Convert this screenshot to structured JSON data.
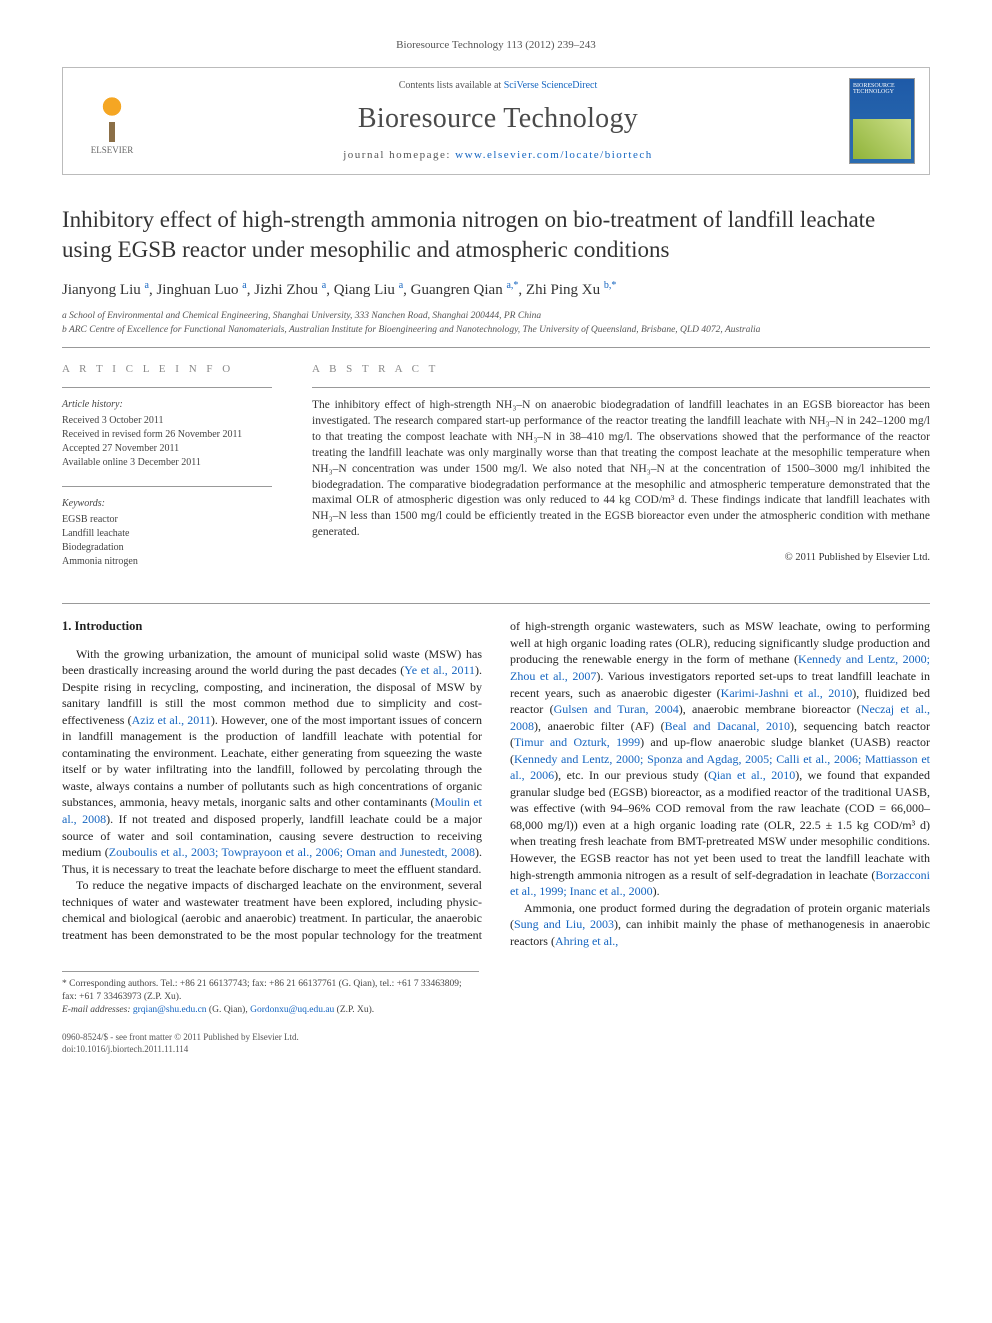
{
  "journal": {
    "citation_line": "Bioresource Technology 113 (2012) 239–243",
    "contents_line_pre": "Contents lists available at ",
    "contents_link": "SciVerse ScienceDirect",
    "name": "Bioresource Technology",
    "homepage_pre": "journal homepage: ",
    "homepage_link": "www.elsevier.com/locate/biortech",
    "publisher_label": "ELSEVIER",
    "cover_label": "BIORESOURCE TECHNOLOGY"
  },
  "article": {
    "title": "Inhibitory effect of high-strength ammonia nitrogen on bio-treatment of landfill leachate using EGSB reactor under mesophilic and atmospheric conditions",
    "authors_html": "Jianyong Liu <sup>a</sup>, Jinghuan Luo <sup>a</sup>, Jizhi Zhou <sup>a</sup>, Qiang Liu <sup>a</sup>, Guangren Qian <sup>a,*</sup>, Zhi Ping Xu <sup>b,*</sup>",
    "affiliations": {
      "a": "a School of Environmental and Chemical Engineering, Shanghai University, 333 Nanchen Road, Shanghai 200444, PR China",
      "b": "b ARC Centre of Excellence for Functional Nanomaterials, Australian Institute for Bioengineering and Nanotechnology, The University of Queensland, Brisbane, QLD 4072, Australia"
    }
  },
  "info": {
    "label": "A R T I C L E   I N F O",
    "history_title": "Article history:",
    "history": [
      "Received 3 October 2011",
      "Received in revised form 26 November 2011",
      "Accepted 27 November 2011",
      "Available online 3 December 2011"
    ],
    "keywords_title": "Keywords:",
    "keywords": [
      "EGSB reactor",
      "Landfill leachate",
      "Biodegradation",
      "Ammonia nitrogen"
    ]
  },
  "abstract": {
    "label": "A B S T R A C T",
    "text": "The inhibitory effect of high-strength NH₃–N on anaerobic biodegradation of landfill leachates in an EGSB bioreactor has been investigated. The research compared start-up performance of the reactor treating the landfill leachate with NH₃–N in 242–1200 mg/l to that treating the compost leachate with NH₃–N in 38–410 mg/l. The observations showed that the performance of the reactor treating the landfill leachate was only marginally worse than that treating the compost leachate at the mesophilic temperature when NH₃–N concentration was under 1500 mg/l. We also noted that NH₃–N at the concentration of 1500–3000 mg/l inhibited the biodegradation. The comparative biodegradation performance at the mesophilic and atmospheric temperature demonstrated that the maximal OLR of atmospheric digestion was only reduced to 44 kg COD/m³ d. These findings indicate that landfill leachates with NH₃–N less than 1500 mg/l could be efficiently treated in the EGSB bioreactor even under the atmospheric condition with methane generated.",
    "copyright": "© 2011 Published by Elsevier Ltd."
  },
  "body": {
    "heading": "1. Introduction",
    "paragraphs": [
      "With the growing urbanization, the amount of municipal solid waste (MSW) has been drastically increasing around the world during the past decades (<span class=\"cite\">Ye et al., 2011</span>). Despite rising in recycling, composting, and incineration, the disposal of MSW by sanitary landfill is still the most common method due to simplicity and cost-effectiveness (<span class=\"cite\">Aziz et al., 2011</span>). However, one of the most important issues of concern in landfill management is the production of landfill leachate with potential for contaminating the environment. Leachate, either generating from squeezing the waste itself or by water infiltrating into the landfill, followed by percolating through the waste, always contains a number of pollutants such as high concentrations of organic substances, ammonia, heavy metals, inorganic salts and other contaminants (<span class=\"cite\">Moulin et al., 2008</span>). If not treated and disposed properly, landfill leachate could be a major source of water and soil contamination, causing severe destruction to receiving medium (<span class=\"cite\">Zouboulis et al., 2003; Towprayoon et al., 2006; Oman and Junestedt, 2008</span>). Thus, it is necessary to treat the leachate before discharge to meet the effluent standard.",
      "To reduce the negative impacts of discharged leachate on the environment, several techniques of water and wastewater treatment have been explored, including physic-chemical and biological (aerobic and anaerobic) treatment. In particular, the anaerobic treatment has been demonstrated to be the most popular technology for the treatment of high-strength organic wastewaters, such as MSW leachate, owing to performing well at high organic loading rates (OLR), reducing significantly sludge production and producing the renewable energy in the form of methane (<span class=\"cite\">Kennedy and Lentz, 2000; Zhou et al., 2007</span>). Various investigators reported set-ups to treat landfill leachate in recent years, such as anaerobic digester (<span class=\"cite\">Karimi-Jashni et al., 2010</span>), fluidized bed reactor (<span class=\"cite\">Gulsen and Turan, 2004</span>), anaerobic membrane bioreactor (<span class=\"cite\">Neczaj et al., 2008</span>), anaerobic filter (AF) (<span class=\"cite\">Beal and Dacanal, 2010</span>), sequencing batch reactor (<span class=\"cite\">Timur and Ozturk, 1999</span>) and up-flow anaerobic sludge blanket (UASB) reactor (<span class=\"cite\">Kennedy and Lentz, 2000; Sponza and Agdag, 2005; Calli et al., 2006; Mattiasson et al., 2006</span>), etc. In our previous study (<span class=\"cite\">Qian et al., 2010</span>), we found that expanded granular sludge bed (EGSB) bioreactor, as a modified reactor of the traditional UASB, was effective (with 94–96% COD removal from the raw leachate (COD = 66,000–68,000 mg/l)) even at a high organic loading rate (OLR, 22.5 ± 1.5 kg COD/m³ d) when treating fresh leachate from BMT-pretreated MSW under mesophilic conditions. However, the EGSB reactor has not yet been used to treat the landfill leachate with high-strength ammonia nitrogen as a result of self-degradation in leachate (<span class=\"cite\">Borzacconi et al., 1999; Inanc et al., 2000</span>).",
      "Ammonia, one product formed during the degradation of protein organic materials (<span class=\"cite\">Sung and Liu, 2003</span>), can inhibit mainly the phase of methanogenesis in anaerobic reactors (<span class=\"cite\">Ahring et al.,</span>"
    ]
  },
  "footnotes": {
    "corresponding": "* Corresponding authors. Tel.: +86 21 66137743; fax: +86 21 66137761 (G. Qian), tel.: +61 7 33463809; fax: +61 7 33463973 (Z.P. Xu).",
    "emails_label": "E-mail addresses: ",
    "email1": "grqian@shu.edu.cn",
    "email1_who": " (G. Qian), ",
    "email2": "Gordonxu@uq.edu.au",
    "email2_who": " (Z.P. Xu)."
  },
  "footer": {
    "line1": "0960-8524/$ - see front matter © 2011 Published by Elsevier Ltd.",
    "line2": "doi:10.1016/j.biortech.2011.11.114"
  },
  "colors": {
    "link": "#1565c0",
    "text": "#222222",
    "muted": "#555555",
    "rule": "#999999"
  }
}
